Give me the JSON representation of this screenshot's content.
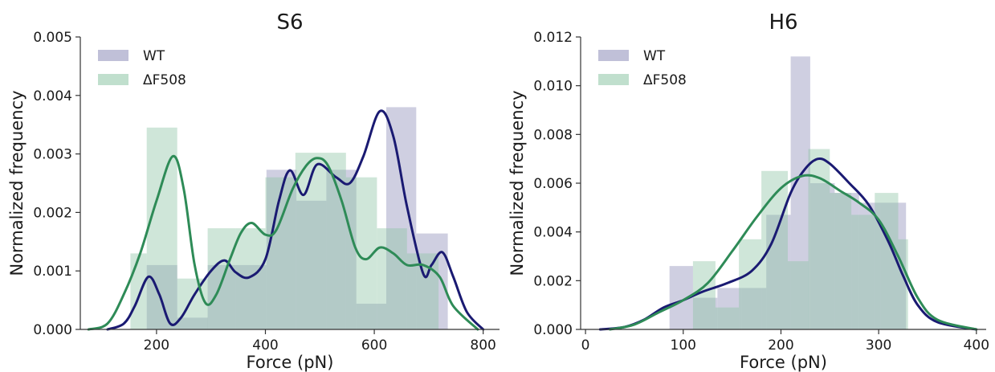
{
  "chart_data": [
    {
      "type": "bar",
      "title": "S6",
      "xlabel": "Force (pN)",
      "ylabel": "Normalized frequency",
      "xlim": [
        60,
        830
      ],
      "ylim": [
        0,
        0.005
      ],
      "xticks": [
        200,
        400,
        600,
        800
      ],
      "yticks": [
        0.0,
        0.001,
        0.002,
        0.003,
        0.004,
        0.005
      ],
      "ytick_decimals": 3,
      "legend": "top-left",
      "grid": false,
      "series": [
        {
          "name": "WT",
          "color": "#8c8cb8",
          "line_color": "#1a1a72",
          "bins": [
            [
              182,
              238,
              0.0011
            ],
            [
              238,
              294,
              0.0002
            ],
            [
              294,
              402,
              0.0011
            ],
            [
              402,
              457,
              0.00273
            ],
            [
              457,
              512,
              0.0022
            ],
            [
              512,
              567,
              0.00273
            ],
            [
              567,
              622,
              0.00044
            ],
            [
              622,
              677,
              0.0038
            ],
            [
              677,
              735,
              0.00164
            ]
          ],
          "kde": [
            [
              110,
              0
            ],
            [
              140,
              0.0001
            ],
            [
              160,
              0.0004
            ],
            [
              185,
              0.0009
            ],
            [
              205,
              0.0006
            ],
            [
              225,
              0.0001
            ],
            [
              245,
              0.0002
            ],
            [
              270,
              0.0006
            ],
            [
              300,
              0.001
            ],
            [
              325,
              0.00118
            ],
            [
              345,
              0.00098
            ],
            [
              370,
              0.00089
            ],
            [
              400,
              0.0012
            ],
            [
              425,
              0.0022
            ],
            [
              445,
              0.00272
            ],
            [
              470,
              0.0023
            ],
            [
              495,
              0.00282
            ],
            [
              530,
              0.0026
            ],
            [
              555,
              0.0025
            ],
            [
              580,
              0.00296
            ],
            [
              610,
              0.00373
            ],
            [
              635,
              0.0033
            ],
            [
              660,
              0.0021
            ],
            [
              690,
              0.00095
            ],
            [
              705,
              0.0011
            ],
            [
              725,
              0.00132
            ],
            [
              745,
              0.0009
            ],
            [
              770,
              0.0003
            ],
            [
              800,
              0
            ]
          ]
        },
        {
          "name": "ΔF508",
          "color": "#8cc4a4",
          "line_color": "#2e8b57",
          "bins": [
            [
              152,
              182,
              0.0013
            ],
            [
              182,
              238,
              0.00345
            ],
            [
              238,
              294,
              0.00087
            ],
            [
              294,
              345,
              0.00173
            ],
            [
              345,
              400,
              0.00173
            ],
            [
              400,
              455,
              0.0026
            ],
            [
              455,
              548,
              0.00302
            ],
            [
              548,
              605,
              0.0026
            ],
            [
              605,
              660,
              0.00173
            ],
            [
              660,
              718,
              0.0013
            ]
          ],
          "kde": [
            [
              75,
              0
            ],
            [
              110,
              0.0001
            ],
            [
              140,
              0.0006
            ],
            [
              170,
              0.0013
            ],
            [
              200,
              0.0022
            ],
            [
              230,
              0.00296
            ],
            [
              250,
              0.0024
            ],
            [
              270,
              0.0011
            ],
            [
              290,
              0.00045
            ],
            [
              310,
              0.0006
            ],
            [
              335,
              0.0012
            ],
            [
              355,
              0.00165
            ],
            [
              375,
              0.00182
            ],
            [
              400,
              0.00162
            ],
            [
              420,
              0.0017
            ],
            [
              450,
              0.0024
            ],
            [
              475,
              0.0028
            ],
            [
              495,
              0.00293
            ],
            [
              515,
              0.0028
            ],
            [
              540,
              0.0022
            ],
            [
              565,
              0.0014
            ],
            [
              585,
              0.0012
            ],
            [
              610,
              0.0014
            ],
            [
              635,
              0.0013
            ],
            [
              660,
              0.0011
            ],
            [
              690,
              0.0011
            ],
            [
              720,
              0.0009
            ],
            [
              745,
              0.0004
            ],
            [
              790,
              0
            ]
          ]
        }
      ]
    },
    {
      "type": "bar",
      "title": "H6",
      "xlabel": "Force (pN)",
      "ylabel": "Normalized frequency",
      "xlim": [
        -5,
        410
      ],
      "ylim": [
        0,
        0.012
      ],
      "xticks": [
        0,
        100,
        200,
        300,
        400
      ],
      "yticks": [
        0.0,
        0.002,
        0.004,
        0.006,
        0.008,
        0.01,
        0.012
      ],
      "ytick_decimals": 3,
      "legend": "top-left",
      "grid": false,
      "series": [
        {
          "name": "WT",
          "color": "#8c8cb8",
          "line_color": "#1a1a72",
          "bins": [
            [
              86,
              110,
              0.0026
            ],
            [
              110,
              135,
              0.0013
            ],
            [
              135,
              160,
              0.0017
            ],
            [
              160,
              185,
              0.0017
            ],
            [
              185,
              210,
              0.0047
            ],
            [
              210,
              230,
              0.0112
            ],
            [
              230,
              255,
              0.006
            ],
            [
              255,
              280,
              0.0056
            ],
            [
              280,
              302,
              0.0052
            ],
            [
              302,
              328,
              0.0052
            ]
          ],
          "kde": [
            [
              15,
              0
            ],
            [
              40,
              0.0001
            ],
            [
              60,
              0.0004
            ],
            [
              80,
              0.0009
            ],
            [
              100,
              0.0012
            ],
            [
              120,
              0.00155
            ],
            [
              145,
              0.0019
            ],
            [
              170,
              0.0024
            ],
            [
              190,
              0.0035
            ],
            [
              210,
              0.0056
            ],
            [
              225,
              0.0066
            ],
            [
              238,
              0.007
            ],
            [
              250,
              0.0068
            ],
            [
              270,
              0.006
            ],
            [
              290,
              0.0051
            ],
            [
              310,
              0.0036
            ],
            [
              325,
              0.0022
            ],
            [
              340,
              0.001
            ],
            [
              360,
              0.0003
            ],
            [
              400,
              0
            ]
          ]
        },
        {
          "name": "ΔF508",
          "color": "#8cc4a4",
          "line_color": "#2e8b57",
          "bins": [
            [
              110,
              133,
              0.0028
            ],
            [
              133,
              157,
              0.0009
            ],
            [
              157,
              180,
              0.0037
            ],
            [
              180,
              207,
              0.0065
            ],
            [
              207,
              228,
              0.0028
            ],
            [
              228,
              250,
              0.0074
            ],
            [
              250,
              272,
              0.0056
            ],
            [
              272,
              296,
              0.0047
            ],
            [
              296,
              320,
              0.0056
            ],
            [
              320,
              330,
              0.0037
            ]
          ],
          "kde": [
            [
              25,
              0
            ],
            [
              50,
              0.0002
            ],
            [
              75,
              0.0007
            ],
            [
              100,
              0.0012
            ],
            [
              125,
              0.0019
            ],
            [
              150,
              0.0032
            ],
            [
              175,
              0.0046
            ],
            [
              200,
              0.0058
            ],
            [
              222,
              0.0063
            ],
            [
              240,
              0.0062
            ],
            [
              260,
              0.0057
            ],
            [
              280,
              0.0052
            ],
            [
              300,
              0.0045
            ],
            [
              320,
              0.003
            ],
            [
              340,
              0.0013
            ],
            [
              360,
              0.0004
            ],
            [
              400,
              0
            ]
          ]
        }
      ]
    }
  ]
}
